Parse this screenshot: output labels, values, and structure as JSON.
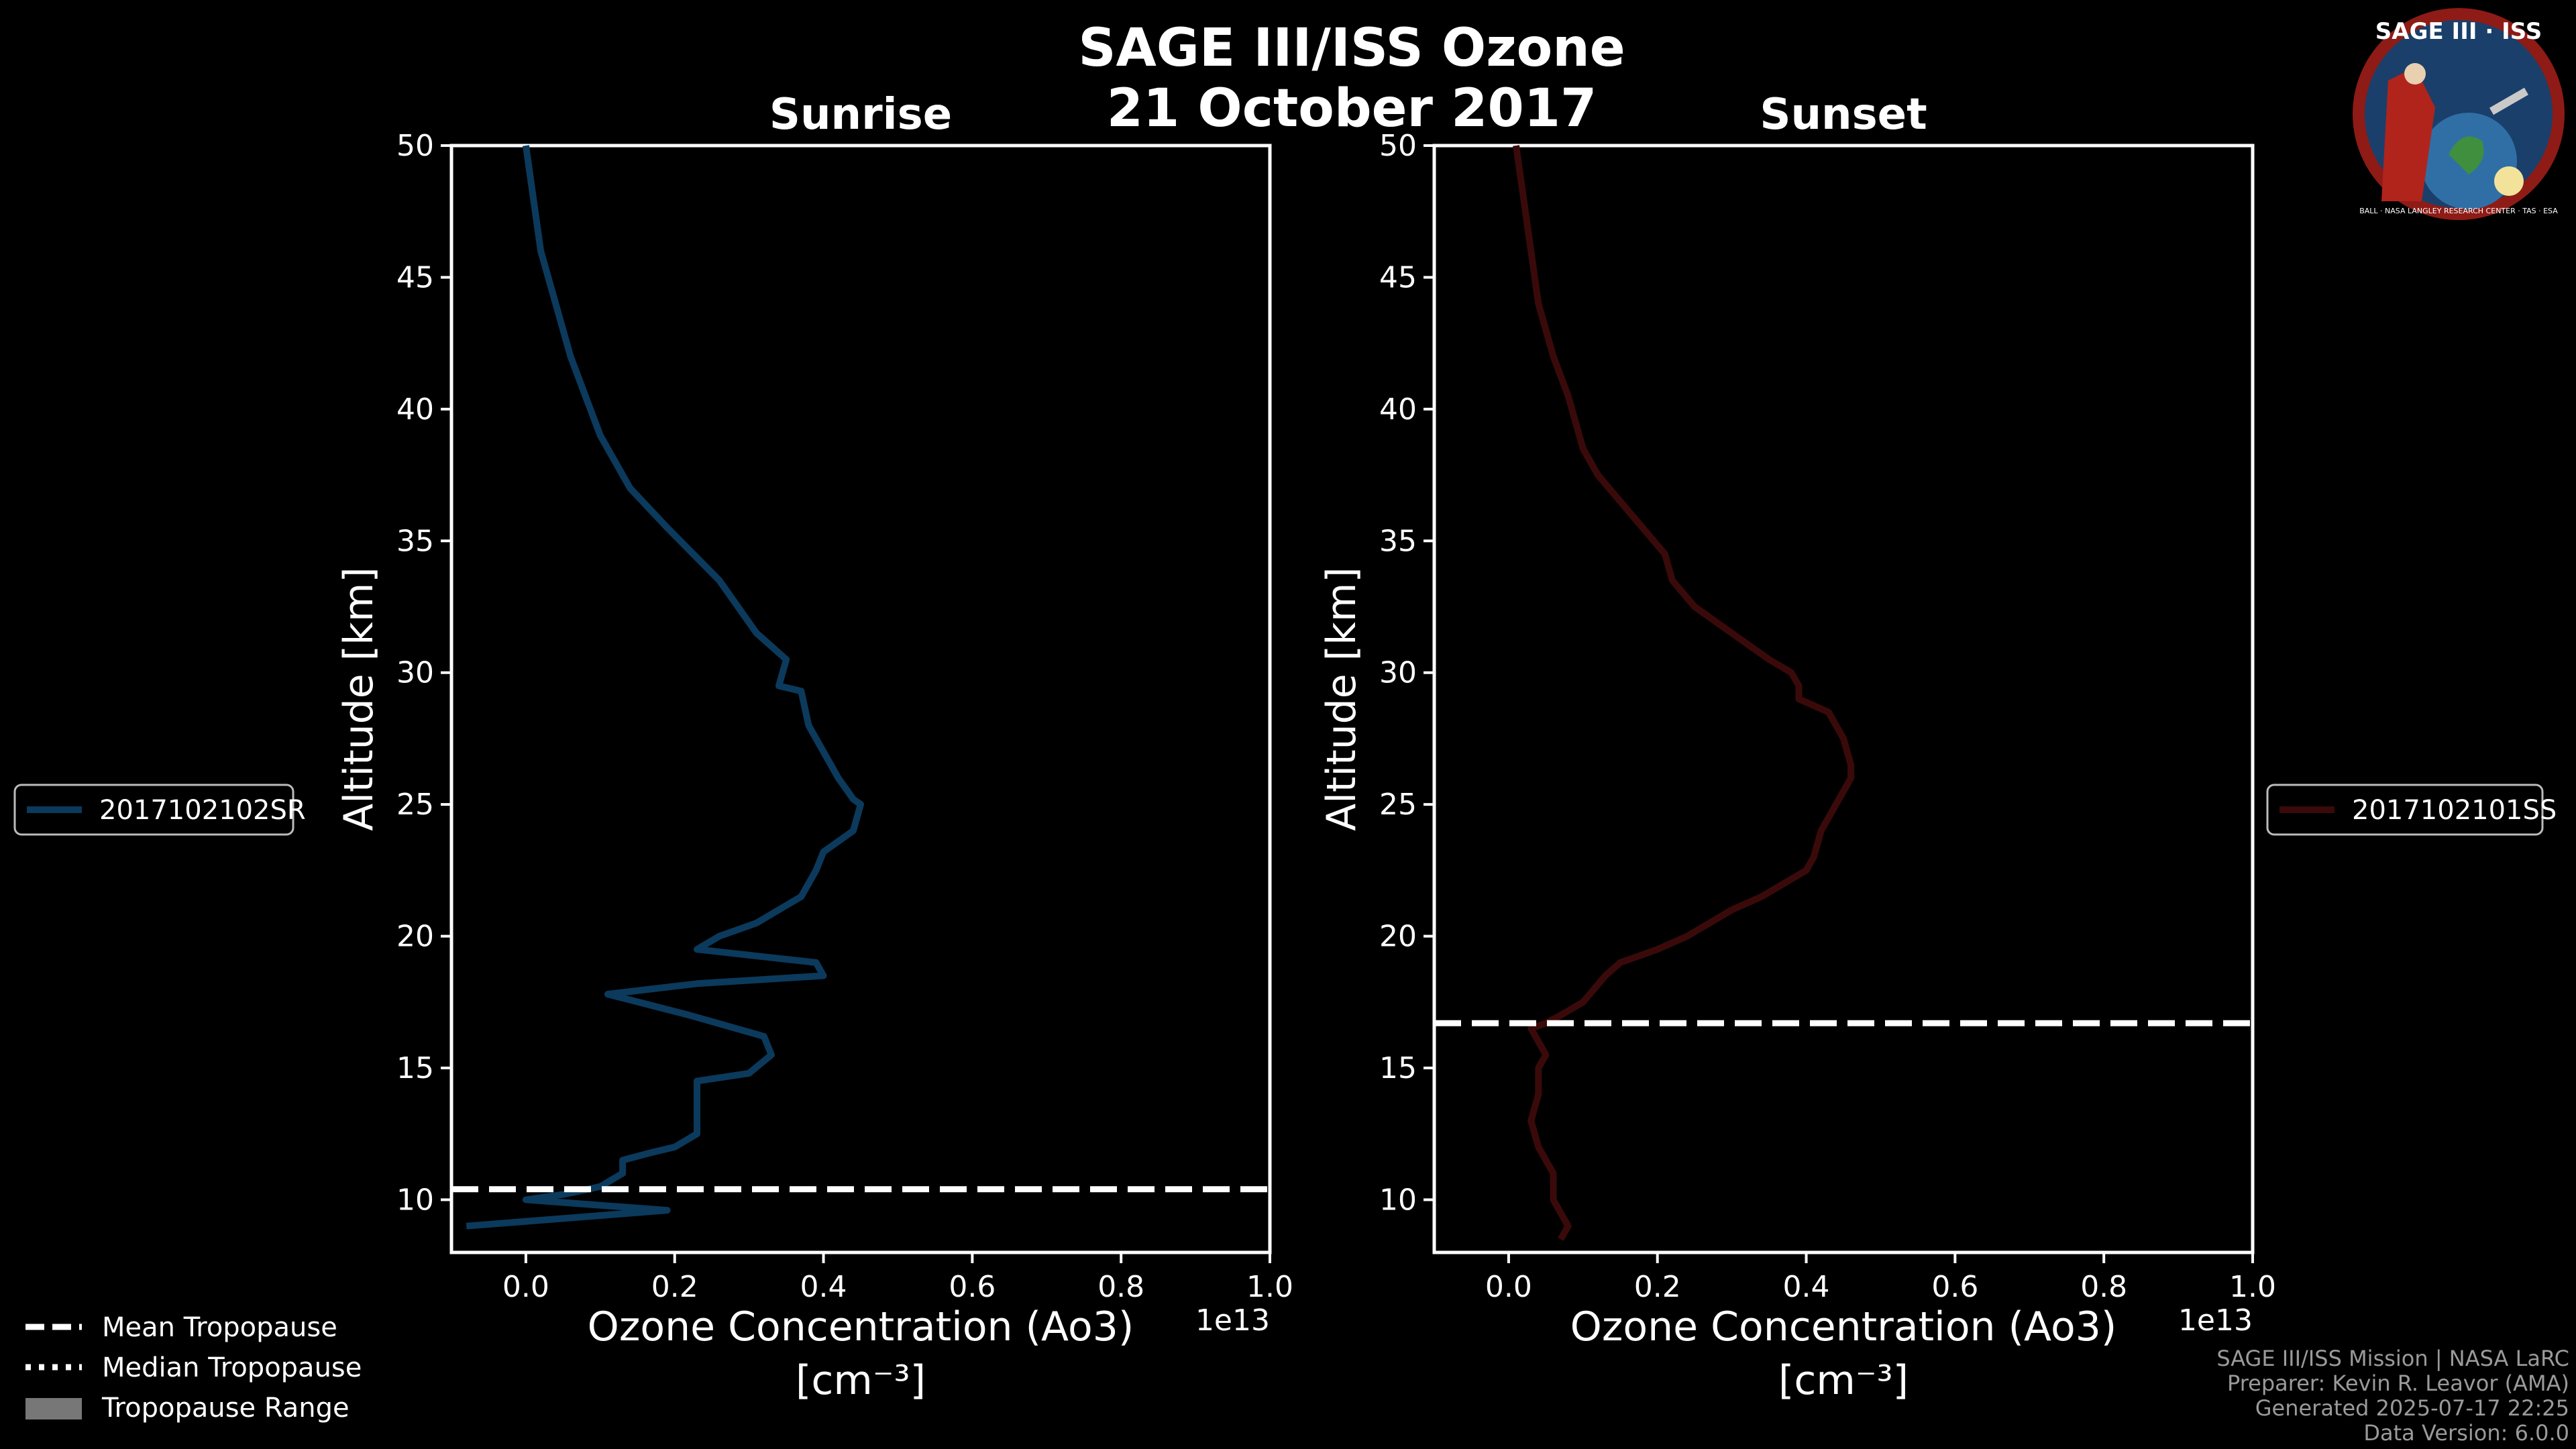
{
  "header": {
    "title_line1": "SAGE III/ISS Ozone",
    "title_line2": "21 October 2017"
  },
  "logo": {
    "text": "SAGE III · ISS",
    "ring_text": "BALL · NASA LANGLEY RESEARCH CENTER · TAS · ESA"
  },
  "legend_events": {
    "sunrise": "2017102102SR",
    "sunset": "2017102101SS"
  },
  "legend_tropopause": {
    "mean": "Mean Tropopause",
    "median": "Median Tropopause",
    "range": "Tropopause Range"
  },
  "credits": {
    "line1": "SAGE III/ISS Mission | NASA LaRC",
    "line2": "Preparer: Kevin R. Leavor (AMA)",
    "line3": "Generated 2025-07-17 22:25",
    "line4": "Data Version: 6.0.0"
  },
  "chart_data": [
    {
      "type": "line",
      "title": "Sunrise",
      "xlabel": "Ozone Concentration (Ao3)",
      "xlabel_units": "[cm⁻³]",
      "ylabel": "Altitude [km]",
      "x_multiplier": "1e13",
      "xlim": [
        -0.1,
        1.0
      ],
      "ylim": [
        8,
        50
      ],
      "xticks": [
        "0.0",
        "0.2",
        "0.4",
        "0.6",
        "0.8",
        "1.0"
      ],
      "yticks": [
        "10",
        "15",
        "20",
        "25",
        "30",
        "35",
        "40",
        "45",
        "50"
      ],
      "series_name": "2017102102SR",
      "color": "#0b3a5c",
      "mean_tropopause": 10.4,
      "x": [
        0.0,
        0.01,
        0.02,
        0.04,
        0.06,
        0.08,
        0.1,
        0.14,
        0.19,
        0.26,
        0.31,
        0.35,
        0.34,
        0.37,
        0.38,
        0.4,
        0.42,
        0.44,
        0.45,
        0.44,
        0.4,
        0.39,
        0.37,
        0.31,
        0.26,
        0.23,
        0.39,
        0.4,
        0.23,
        0.11,
        0.22,
        0.32,
        0.33,
        0.3,
        0.23,
        0.23,
        0.23,
        0.2,
        0.17,
        0.13,
        0.13,
        0.1,
        0.05,
        0.0,
        0.19,
        -0.08
      ],
      "y": [
        50,
        48,
        46,
        44,
        42,
        40.5,
        39,
        37,
        35.5,
        33.5,
        31.5,
        30.5,
        29.5,
        29.3,
        28,
        27,
        26,
        25.2,
        25,
        24,
        23.2,
        22.5,
        21.5,
        20.5,
        20,
        19.5,
        19,
        18.5,
        18.2,
        17.8,
        17,
        16.2,
        15.5,
        14.8,
        14.5,
        13.5,
        12.5,
        12,
        11.8,
        11.5,
        11,
        10.5,
        10.2,
        10,
        9.6,
        9
      ]
    },
    {
      "type": "line",
      "title": "Sunset",
      "xlabel": "Ozone Concentration (Ao3)",
      "xlabel_units": "[cm⁻³]",
      "ylabel": "Altitude [km]",
      "x_multiplier": "1e13",
      "xlim": [
        -0.1,
        1.0
      ],
      "ylim": [
        8,
        50
      ],
      "xticks": [
        "0.0",
        "0.2",
        "0.4",
        "0.6",
        "0.8",
        "1.0"
      ],
      "yticks": [
        "10",
        "15",
        "20",
        "25",
        "30",
        "35",
        "40",
        "45",
        "50"
      ],
      "series_name": "2017102101SS",
      "color": "#3a0a0a",
      "mean_tropopause": 16.7,
      "x": [
        0.01,
        0.02,
        0.03,
        0.04,
        0.06,
        0.08,
        0.09,
        0.1,
        0.12,
        0.15,
        0.18,
        0.21,
        0.22,
        0.25,
        0.3,
        0.35,
        0.38,
        0.39,
        0.39,
        0.43,
        0.45,
        0.46,
        0.46,
        0.44,
        0.42,
        0.41,
        0.4,
        0.34,
        0.3,
        0.24,
        0.2,
        0.15,
        0.13,
        0.1,
        0.07,
        0.05,
        0.03,
        0.05,
        0.04,
        0.04,
        0.03,
        0.04,
        0.05,
        0.06,
        0.06,
        0.08,
        0.07
      ],
      "y": [
        50,
        48,
        46,
        44,
        42,
        40.5,
        39.5,
        38.5,
        37.5,
        36.5,
        35.5,
        34.5,
        33.5,
        32.5,
        31.5,
        30.5,
        30,
        29.5,
        29,
        28.5,
        27.5,
        26.5,
        26,
        25,
        24,
        23,
        22.5,
        21.5,
        21,
        20,
        19.5,
        19,
        18.5,
        17.5,
        17,
        16.7,
        16.5,
        15.5,
        15,
        14,
        13,
        12,
        11.5,
        11,
        10,
        9,
        8.5
      ]
    }
  ]
}
